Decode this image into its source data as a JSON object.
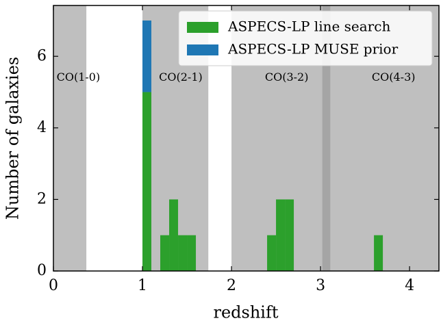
{
  "chart_data": {
    "type": "histogram",
    "xlabel": "redshift",
    "ylabel": "Number of galaxies",
    "bins": [
      1.0,
      1.1,
      1.2,
      1.3,
      1.4,
      1.5,
      1.6,
      1.7,
      1.8,
      1.9,
      2.0,
      2.1,
      2.2,
      2.3,
      2.4,
      2.5,
      2.6,
      2.7,
      2.8,
      2.9,
      3.0,
      3.1,
      3.2,
      3.3,
      3.4,
      3.5,
      3.6,
      3.7
    ],
    "stacked": true,
    "series": [
      {
        "name": "ASPECS-LP line search",
        "color": "#2ca02c",
        "values": [
          5,
          0,
          1,
          2,
          1,
          1,
          0,
          0,
          0,
          0,
          0,
          0,
          0,
          0,
          1,
          2,
          2,
          0,
          0,
          0,
          0,
          0,
          0,
          0,
          0,
          0,
          1
        ]
      },
      {
        "name": "ASPECS-LP MUSE prior",
        "color": "#1f77b4",
        "values": [
          2,
          0,
          0,
          0,
          0,
          0,
          0,
          0,
          0,
          0,
          0,
          0,
          0,
          0,
          0,
          0,
          0,
          0,
          0,
          0,
          0,
          0,
          0,
          0,
          0,
          0,
          0
        ]
      }
    ],
    "shaded_spans": [
      {
        "x": [
          0,
          0.37
        ],
        "color": "#bfbfbf"
      },
      {
        "x": [
          1.0,
          1.74
        ],
        "color": "#bfbfbf"
      },
      {
        "x": [
          2.0,
          4.33
        ],
        "color": "#bfbfbf"
      },
      {
        "x": [
          3.02,
          3.11
        ],
        "color": "#a5a5a5"
      }
    ],
    "annotations": [
      {
        "text": "CO(1-0)",
        "x": 0.28,
        "y": 5.4
      },
      {
        "text": "CO(2-1)",
        "x": 1.43,
        "y": 5.4
      },
      {
        "text": "CO(3-2)",
        "x": 2.62,
        "y": 5.4
      },
      {
        "text": "CO(4-3)",
        "x": 3.82,
        "y": 5.4
      }
    ],
    "xlim": [
      0,
      4.33
    ],
    "ylim": [
      0,
      7.42
    ],
    "xticks": [
      0,
      1,
      2,
      3,
      4
    ],
    "yticks": [
      0,
      2,
      4,
      6
    ],
    "legend": "upper right"
  }
}
